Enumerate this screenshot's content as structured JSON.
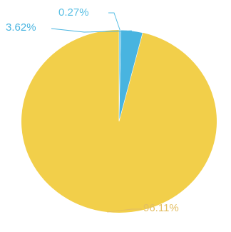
{
  "chart_data": {
    "type": "pie",
    "title": "",
    "start_angle_deg": 0,
    "direction": "counterclockwise",
    "slices": [
      {
        "value": 96.11,
        "label": "96.11%",
        "color": "#F2CF4A",
        "label_color": "#E3BE63"
      },
      {
        "value": 3.62,
        "label": "3.62%",
        "color": "#48B4E0",
        "label_color": "#48B4E0"
      },
      {
        "value": 0.27,
        "label": "0.27%",
        "color": "#5FC0E6",
        "label_color": "#59BFE4"
      }
    ],
    "legend": "none"
  }
}
